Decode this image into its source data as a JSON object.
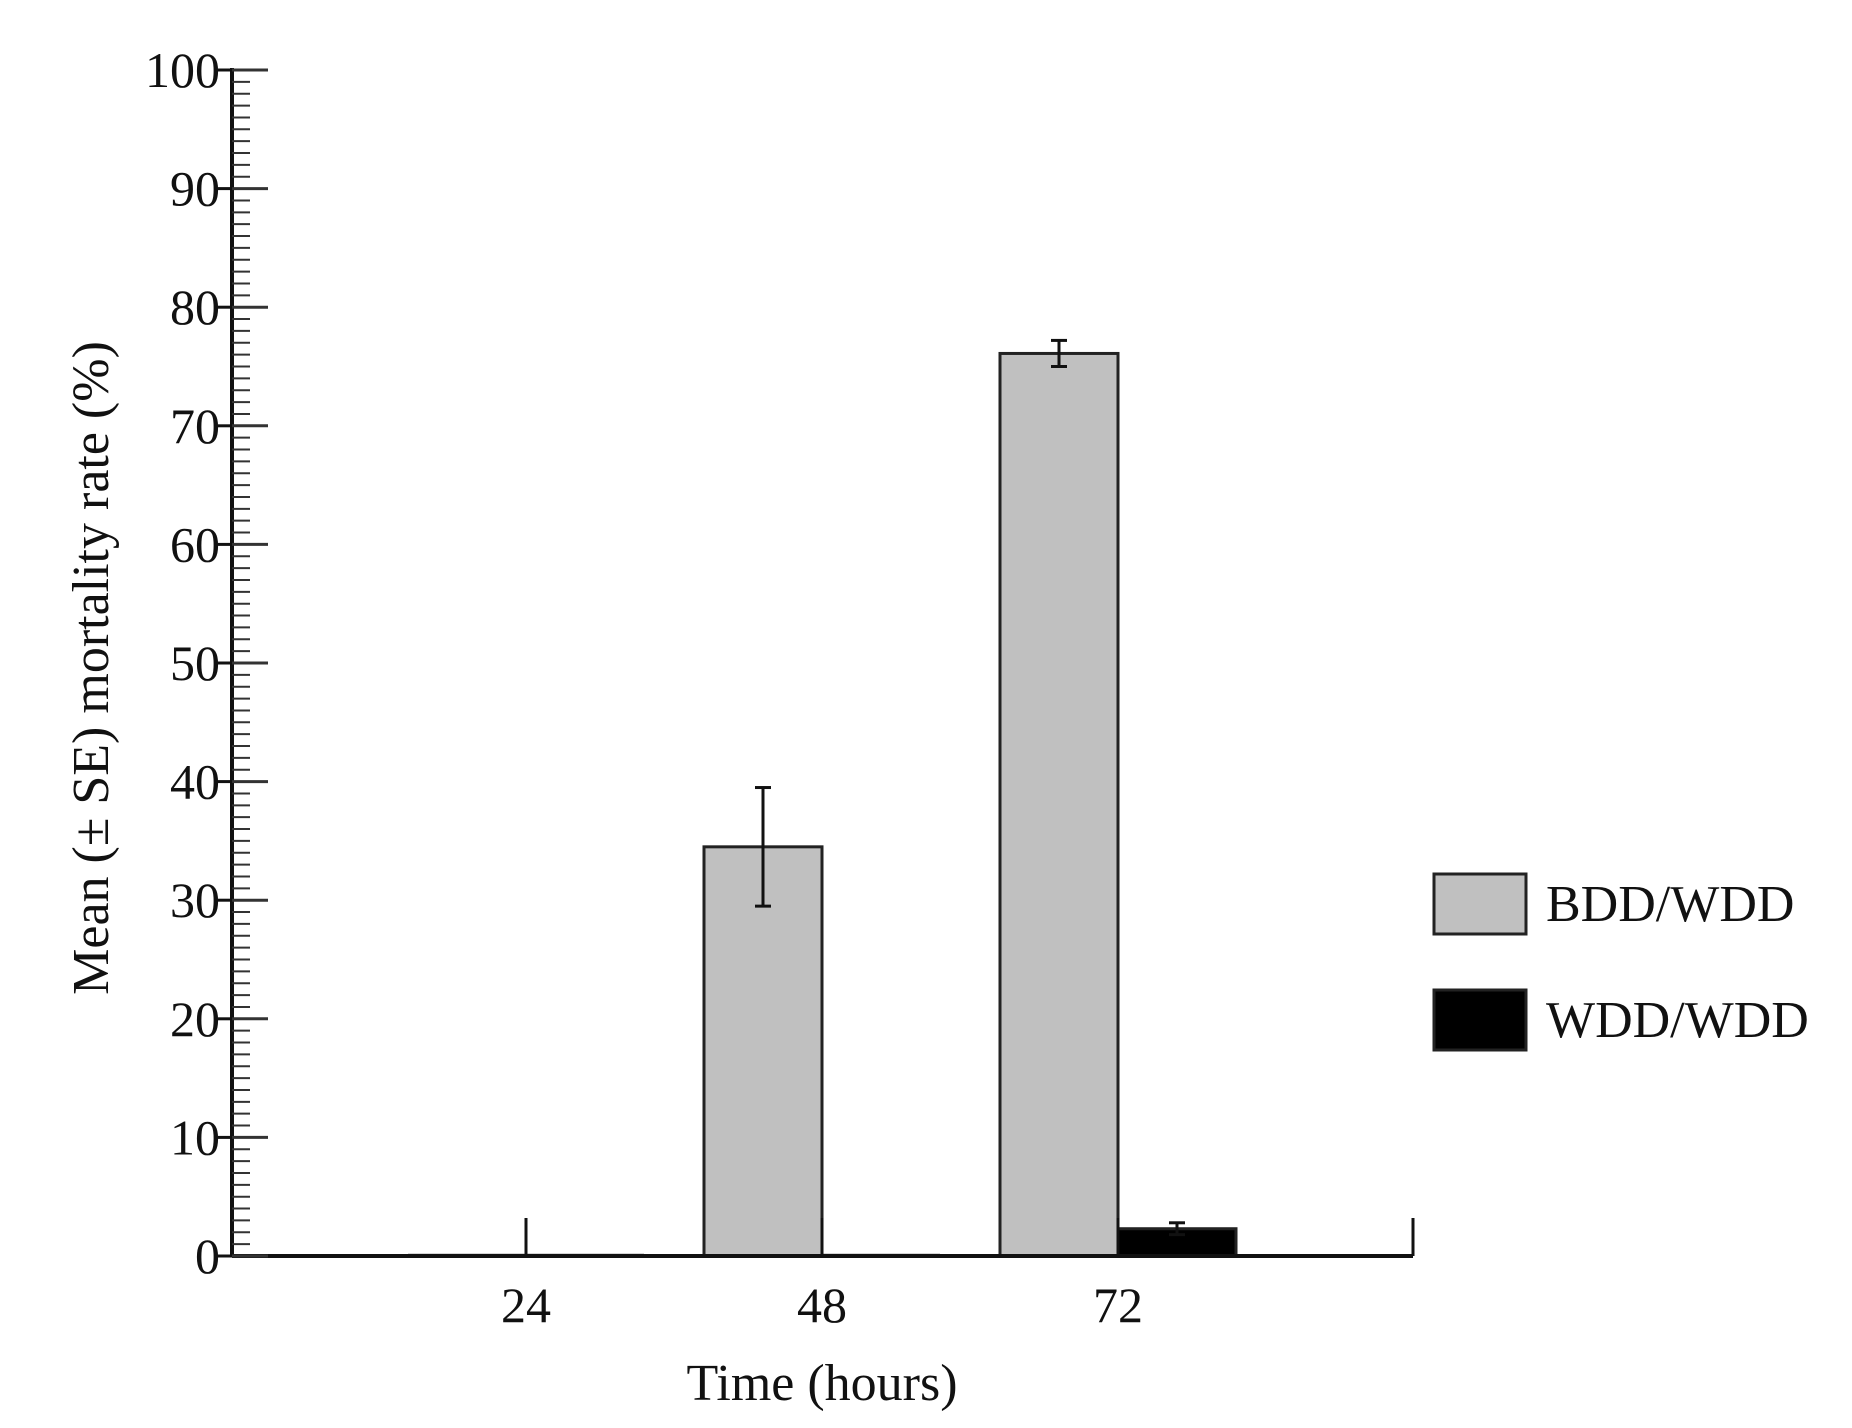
{
  "chart_data": {
    "type": "bar",
    "title": "",
    "xlabel": "Time (hours)",
    "ylabel": "Mean (± SE) mortality rate (%)",
    "ylim": [
      0,
      100
    ],
    "y_major_ticks": [
      "0",
      "10",
      "20",
      "30",
      "40",
      "50",
      "60",
      "70",
      "80",
      "90",
      "100"
    ],
    "y_minor_step": 1,
    "categories": [
      "24",
      "48",
      "72"
    ],
    "series": [
      {
        "name": "BDD/WDD",
        "color": "#c0c0c0",
        "values": [
          0,
          34.5,
          76.1
        ],
        "errors": [
          0,
          5.0,
          1.1
        ]
      },
      {
        "name": "WDD/WDD",
        "color": "#000000",
        "values": [
          0,
          0,
          2.3
        ],
        "errors": [
          0,
          0,
          0.5
        ]
      }
    ],
    "grid": false,
    "legend_position": "right"
  }
}
